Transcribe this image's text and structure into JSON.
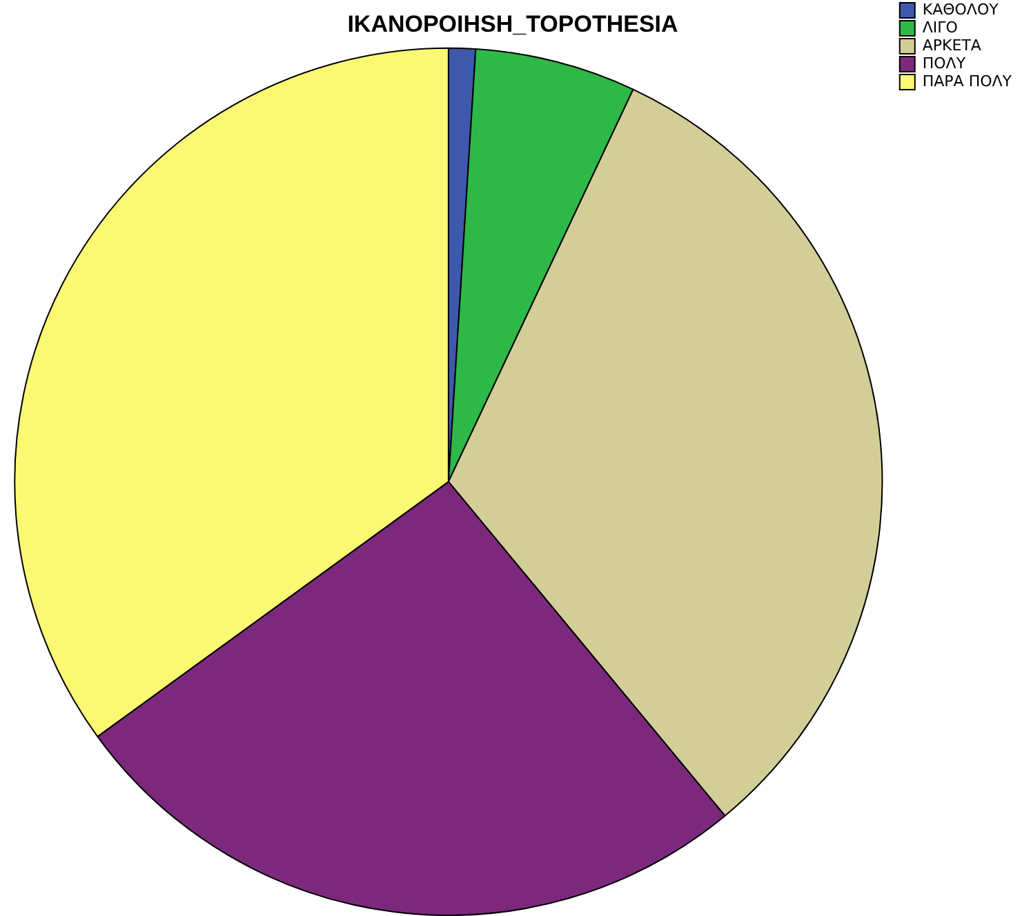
{
  "chart_data": {
    "type": "pie",
    "title": "IKANOPOIHSH_TOPOTHESIA",
    "categories": [
      "ΚΑΘΟΛΟΥ",
      "ΛΙΓΟ",
      "ΑΡΚΕΤΑ",
      "ΠΟΛΥ",
      "ΠΑΡΑ ΠΟΛΥ"
    ],
    "values": [
      1,
      6,
      32,
      26,
      35
    ],
    "colors": [
      "#3e58ac",
      "#2eb848",
      "#d3ce97",
      "#7c287d",
      "#fbf873"
    ],
    "legend": "top right"
  }
}
